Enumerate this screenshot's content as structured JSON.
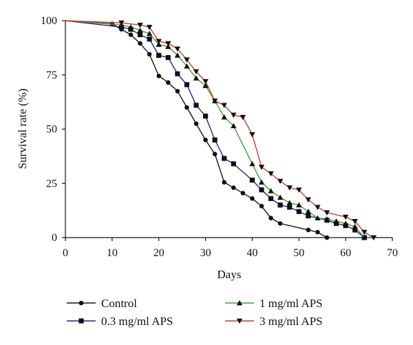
{
  "chart_data": {
    "type": "line",
    "xlabel": "Days",
    "ylabel": "Survival rate (%)",
    "xlim": [
      0,
      70
    ],
    "ylim": [
      0,
      100
    ],
    "x_ticks": [
      0,
      10,
      20,
      30,
      40,
      50,
      60,
      70
    ],
    "y_ticks": [
      0,
      25,
      50,
      75,
      100
    ],
    "grid": false,
    "legend_position": "bottom",
    "series": [
      {
        "name": "Control",
        "color": "#111111",
        "marker": "circle",
        "points": [
          [
            0,
            100
          ],
          [
            10,
            98.5
          ],
          [
            12,
            96
          ],
          [
            14,
            93.5
          ],
          [
            16,
            89.5
          ],
          [
            18,
            84.5
          ],
          [
            20,
            74.5
          ],
          [
            22,
            71.5
          ],
          [
            24,
            67.5
          ],
          [
            26,
            60
          ],
          [
            28,
            52.5
          ],
          [
            30,
            45
          ],
          [
            32,
            38.5
          ],
          [
            34,
            25.5
          ],
          [
            36,
            23
          ],
          [
            38,
            20.5
          ],
          [
            40,
            18
          ],
          [
            42,
            14.5
          ],
          [
            44,
            9
          ],
          [
            46,
            6.5
          ],
          [
            52,
            3.5
          ],
          [
            54,
            2.5
          ],
          [
            56,
            0
          ]
        ]
      },
      {
        "name": "0.3 mg/ml APS",
        "color": "#1f1f9e",
        "marker": "square",
        "points": [
          [
            0,
            100
          ],
          [
            12,
            97
          ],
          [
            14,
            96
          ],
          [
            16,
            93.5
          ],
          [
            18,
            91.5
          ],
          [
            20,
            84
          ],
          [
            22,
            83
          ],
          [
            24,
            75.5
          ],
          [
            26,
            70.5
          ],
          [
            28,
            61
          ],
          [
            30,
            56
          ],
          [
            32,
            45
          ],
          [
            34,
            36.5
          ],
          [
            36,
            34
          ],
          [
            40,
            26.5
          ],
          [
            42,
            22
          ],
          [
            44,
            18
          ],
          [
            46,
            15
          ],
          [
            48,
            14
          ],
          [
            50,
            12
          ],
          [
            52,
            10
          ],
          [
            56,
            8
          ],
          [
            58,
            6.5
          ],
          [
            60,
            5.5
          ],
          [
            62,
            3.5
          ],
          [
            64,
            0
          ]
        ]
      },
      {
        "name": "1 mg/ml APS",
        "color": "#3f9f2f",
        "marker": "triangle-up",
        "points": [
          [
            0,
            100
          ],
          [
            12,
            98
          ],
          [
            14,
            97
          ],
          [
            16,
            95.5
          ],
          [
            18,
            94
          ],
          [
            20,
            89
          ],
          [
            22,
            88
          ],
          [
            24,
            84
          ],
          [
            26,
            79
          ],
          [
            28,
            73.5
          ],
          [
            30,
            70
          ],
          [
            32,
            63
          ],
          [
            34,
            55.5
          ],
          [
            36,
            51.5
          ],
          [
            40,
            34
          ],
          [
            42,
            25.5
          ],
          [
            44,
            21.5
          ],
          [
            46,
            18.5
          ],
          [
            48,
            16
          ],
          [
            50,
            15
          ],
          [
            52,
            12
          ],
          [
            54,
            9
          ],
          [
            56,
            8.5
          ],
          [
            58,
            7.5
          ],
          [
            60,
            6.5
          ],
          [
            62,
            5
          ],
          [
            64,
            0
          ]
        ]
      },
      {
        "name": "3 mg/ml APS",
        "color": "#d03a1e",
        "marker": "triangle-down",
        "points": [
          [
            0,
            100
          ],
          [
            12,
            99
          ],
          [
            16,
            98
          ],
          [
            18,
            97
          ],
          [
            20,
            90.5
          ],
          [
            22,
            89.5
          ],
          [
            24,
            87
          ],
          [
            26,
            82
          ],
          [
            28,
            76.5
          ],
          [
            30,
            72
          ],
          [
            32,
            63
          ],
          [
            34,
            61
          ],
          [
            36,
            56.5
          ],
          [
            38,
            55.5
          ],
          [
            40,
            47.5
          ],
          [
            42,
            32.5
          ],
          [
            44,
            29.5
          ],
          [
            46,
            26
          ],
          [
            48,
            23
          ],
          [
            50,
            22
          ],
          [
            52,
            17.5
          ],
          [
            54,
            14
          ],
          [
            56,
            11.5
          ],
          [
            60,
            9.5
          ],
          [
            62,
            7.5
          ],
          [
            64,
            2.5
          ],
          [
            66,
            0
          ]
        ]
      }
    ]
  }
}
